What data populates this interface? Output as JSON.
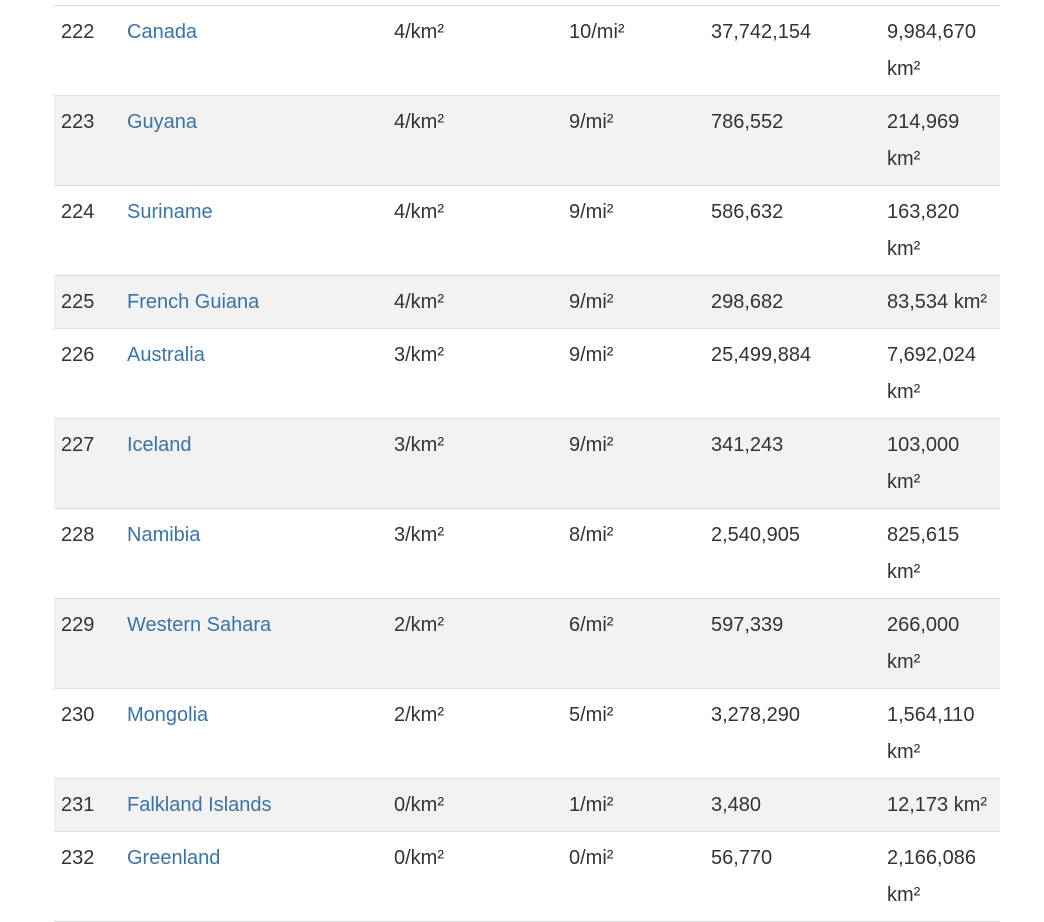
{
  "table": {
    "rows": [
      {
        "rank": "222",
        "country": "Canada",
        "density_km": "4/km²",
        "density_mi": "10/mi²",
        "population": "37,742,154",
        "area": "9,984,670 km²"
      },
      {
        "rank": "223",
        "country": "Guyana",
        "density_km": "4/km²",
        "density_mi": "9/mi²",
        "population": "786,552",
        "area": "214,969 km²"
      },
      {
        "rank": "224",
        "country": "Suriname",
        "density_km": "4/km²",
        "density_mi": "9/mi²",
        "population": "586,632",
        "area": "163,820 km²"
      },
      {
        "rank": "225",
        "country": "French Guiana",
        "density_km": "4/km²",
        "density_mi": "9/mi²",
        "population": "298,682",
        "area": "83,534 km²"
      },
      {
        "rank": "226",
        "country": "Australia",
        "density_km": "3/km²",
        "density_mi": "9/mi²",
        "population": "25,499,884",
        "area": "7,692,024 km²"
      },
      {
        "rank": "227",
        "country": "Iceland",
        "density_km": "3/km²",
        "density_mi": "9/mi²",
        "population": "341,243",
        "area": "103,000 km²"
      },
      {
        "rank": "228",
        "country": "Namibia",
        "density_km": "3/km²",
        "density_mi": "8/mi²",
        "population": "2,540,905",
        "area": "825,615 km²"
      },
      {
        "rank": "229",
        "country": "Western Sahara",
        "density_km": "2/km²",
        "density_mi": "6/mi²",
        "population": "597,339",
        "area": "266,000 km²"
      },
      {
        "rank": "230",
        "country": "Mongolia",
        "density_km": "2/km²",
        "density_mi": "5/mi²",
        "population": "3,278,290",
        "area": "1,564,110 km²"
      },
      {
        "rank": "231",
        "country": "Falkland Islands",
        "density_km": "0/km²",
        "density_mi": "1/mi²",
        "population": "3,480",
        "area": "12,173 km²"
      },
      {
        "rank": "232",
        "country": "Greenland",
        "density_km": "0/km²",
        "density_mi": "0/mi²",
        "population": "56,770",
        "area": "2,166,086 km²"
      }
    ]
  },
  "colors": {
    "link": "#3a73a8",
    "text": "#333333",
    "stripe": "#f2f2f2",
    "border": "#dddddd"
  }
}
